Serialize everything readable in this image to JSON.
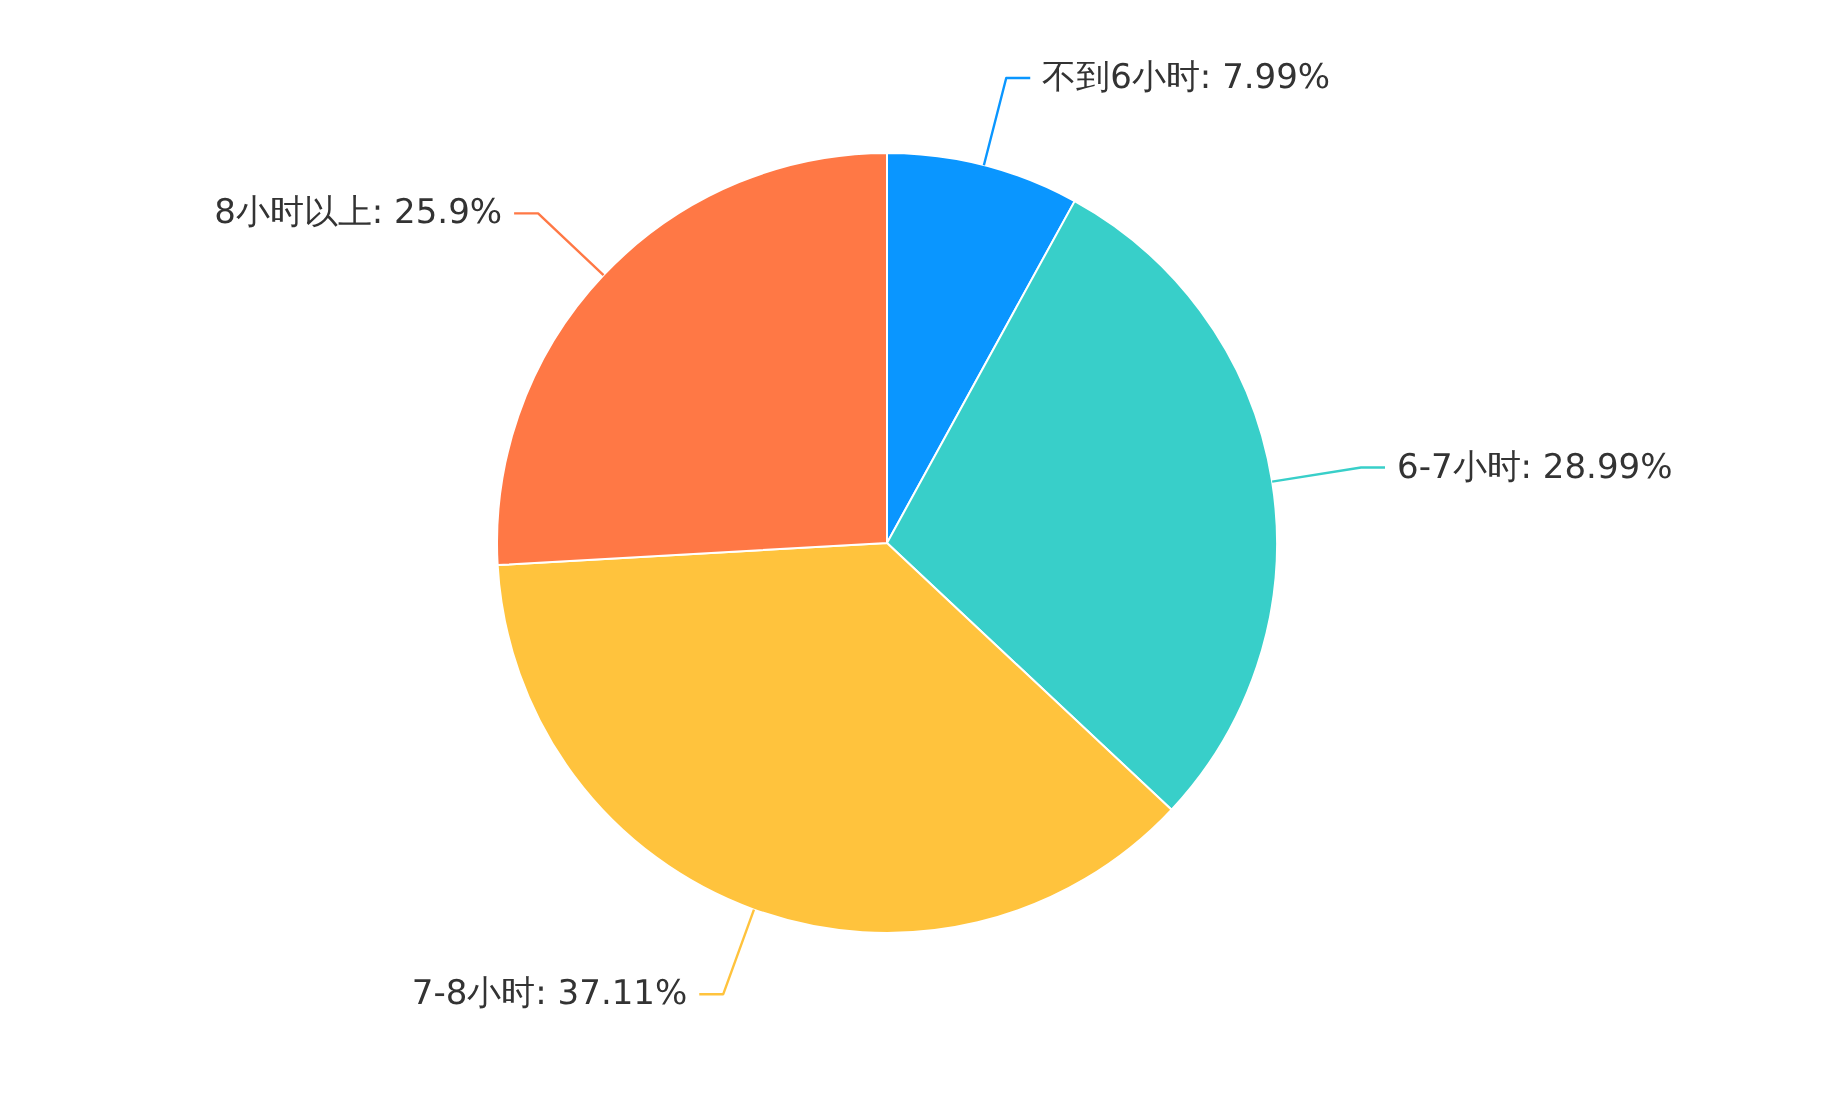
{
  "chart_data": {
    "type": "pie",
    "categories": [
      "不到6小时",
      "6-7小时",
      "7-8小时",
      "8小时以上"
    ],
    "values": [
      7.99,
      28.99,
      37.11,
      25.9
    ],
    "colors": [
      "#0a96ff",
      "#38cfc9",
      "#ffc33d",
      "#ff7845"
    ],
    "value_labels": [
      "7.99%",
      "28.99%",
      "37.11%",
      "25.9%"
    ]
  }
}
